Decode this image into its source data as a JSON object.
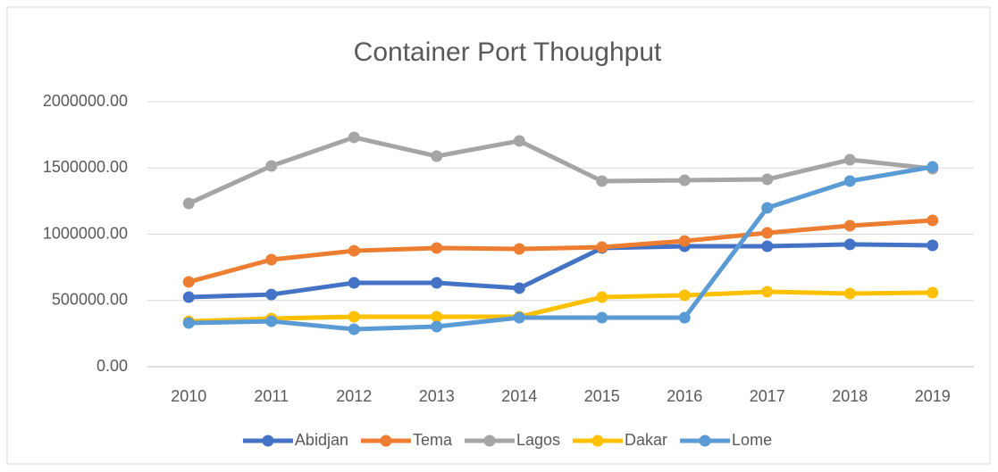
{
  "chart_data": {
    "type": "line",
    "title": "Container Port Thoughput",
    "categories": [
      "2010",
      "2011",
      "2012",
      "2013",
      "2014",
      "2015",
      "2016",
      "2017",
      "2018",
      "2019"
    ],
    "series": [
      {
        "name": "Abidjan",
        "color": "#4472c4",
        "values": [
          525000,
          545000,
          633000,
          633000,
          593000,
          896000,
          909000,
          909000,
          923000,
          916000
        ]
      },
      {
        "name": "Tema",
        "color": "#ed7d31",
        "values": [
          640000,
          808000,
          875000,
          896000,
          889000,
          902000,
          949000,
          1010000,
          1064000,
          1104000
        ]
      },
      {
        "name": "Lagos",
        "color": "#a5a5a5",
        "values": [
          1232000,
          1515000,
          1731000,
          1589000,
          1704000,
          1401000,
          1407000,
          1414000,
          1562000,
          1495000
        ]
      },
      {
        "name": "Dakar",
        "color": "#ffc000",
        "values": [
          343000,
          364000,
          377000,
          377000,
          377000,
          525000,
          539000,
          566000,
          552000,
          559000
        ]
      },
      {
        "name": "Lome",
        "color": "#5b9bd5",
        "values": [
          330000,
          343000,
          283000,
          303000,
          370000,
          370000,
          370000,
          1199000,
          1401000,
          1508000
        ]
      }
    ],
    "ylim": [
      0,
      2000000
    ],
    "yticks": [
      {
        "value": 0,
        "label": "0.00"
      },
      {
        "value": 500000,
        "label": "500000.00"
      },
      {
        "value": 1000000,
        "label": "1000000.00"
      },
      {
        "value": 1500000,
        "label": "1500000.00"
      },
      {
        "value": 2000000,
        "label": "2000000.00"
      }
    ],
    "grid": true,
    "legend": "bottom"
  }
}
